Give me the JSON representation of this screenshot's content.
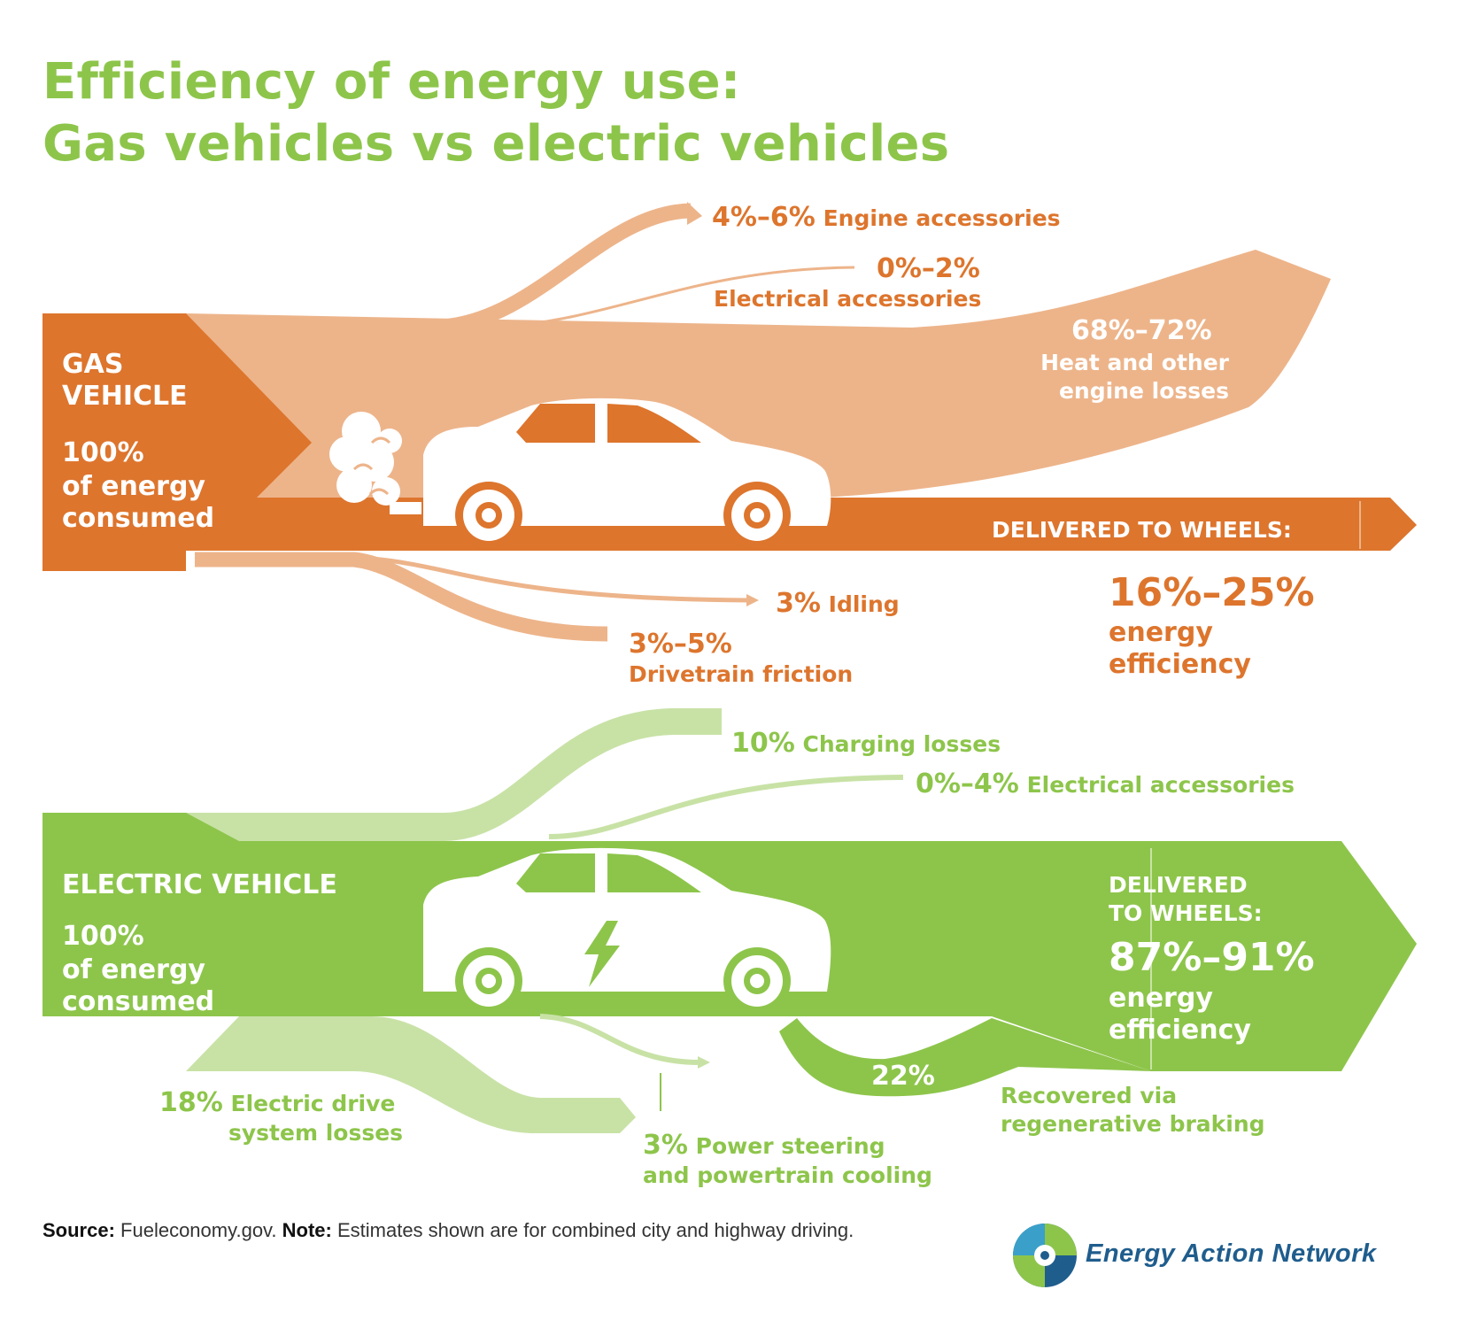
{
  "title": {
    "line1": "Efficiency of energy use:",
    "line2": "Gas vehicles vs electric vehicles"
  },
  "colors": {
    "gas_dark": "#dd752d",
    "gas_light": "#edb48a",
    "ev_dark": "#8dc54b",
    "ev_light": "#c8e2a6",
    "brand_blue": "#1f5d8d"
  },
  "gas": {
    "name_line1": "GAS",
    "name_line2": "VEHICLE",
    "consumed_value": "100%",
    "consumed_line1": "of energy",
    "consumed_line2": "consumed",
    "losses": {
      "engine_accessories": {
        "value": "4%–6%",
        "label": "Engine accessories"
      },
      "electrical_accessories": {
        "value": "0%–2%",
        "label": "Electrical accessories"
      },
      "heat_losses": {
        "value": "68%–72%",
        "label_line1": "Heat and other",
        "label_line2": "engine losses"
      },
      "idling": {
        "value": "3%",
        "label": "Idling"
      },
      "drivetrain": {
        "value": "3%–5%",
        "label": "Drivetrain friction"
      }
    },
    "delivered_label": "DELIVERED TO WHEELS:",
    "efficiency_value": "16%–25%",
    "efficiency_line1": "energy",
    "efficiency_line2": "efficiency",
    "car_icon": "car-with-exhaust-icon"
  },
  "ev": {
    "name": "ELECTRIC VEHICLE",
    "consumed_value": "100%",
    "consumed_line1": "of energy",
    "consumed_line2": "consumed",
    "losses": {
      "charging": {
        "value": "10%",
        "label": "Charging losses"
      },
      "electrical_accessories": {
        "value": "0%–4%",
        "label": "Electrical accessories"
      },
      "drive_system": {
        "value": "18%",
        "label_line1": "Electric drive",
        "label_line2": "system losses"
      },
      "power_steering": {
        "value": "3%",
        "label_line1": "Power steering",
        "label_line2": "and powertrain cooling"
      },
      "regen": {
        "value": "22%",
        "label_line1": "Recovered via",
        "label_line2": "regenerative braking"
      }
    },
    "delivered_line1": "DELIVERED",
    "delivered_line2": "TO WHEELS:",
    "efficiency_value": "87%–91%",
    "efficiency_line1": "energy",
    "efficiency_line2": "efficiency",
    "car_icon": "electric-car-lightning-icon"
  },
  "footer": {
    "source_label": "Source:",
    "source_text": " Fueleconomy.gov. ",
    "note_label": "Note:",
    "note_text": " Estimates shown are for combined city and highway driving."
  },
  "brand": {
    "name": "Energy Action Network",
    "logo_icon": "energy-action-network-logo-icon"
  }
}
